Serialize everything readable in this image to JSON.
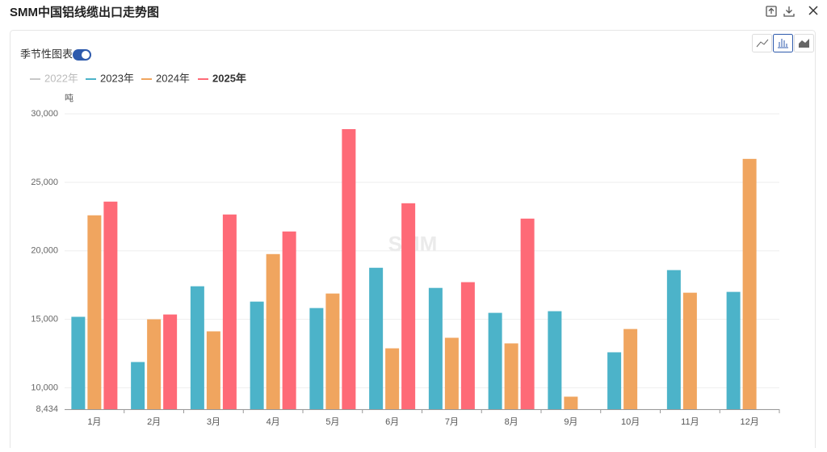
{
  "chart_data": {
    "type": "bar",
    "title": "SMM中国铝线缆出口走势图",
    "toggle_label": "季节性图表",
    "toggle_on": true,
    "unit_label": "吨",
    "watermark": "SMM",
    "categories": [
      "1月",
      "2月",
      "3月",
      "4月",
      "5月",
      "6月",
      "7月",
      "8月",
      "9月",
      "10月",
      "11月",
      "12月"
    ],
    "series": [
      {
        "name": "2022年",
        "color": "#c8c8c8",
        "visible": false,
        "values": [
          null,
          null,
          null,
          null,
          null,
          null,
          null,
          null,
          null,
          null,
          null,
          null
        ]
      },
      {
        "name": "2023年",
        "color": "#4cb3c9",
        "visible": true,
        "values": [
          15180,
          11880,
          17410,
          16290,
          15820,
          18760,
          17290,
          15470,
          15590,
          12590,
          18590,
          17000
        ]
      },
      {
        "name": "2024年",
        "color": "#f0a55f",
        "visible": true,
        "values": [
          22590,
          15000,
          14120,
          19760,
          16880,
          12880,
          13650,
          13240,
          9350,
          14290,
          16940,
          26710
        ]
      },
      {
        "name": "2025年",
        "color": "#fe6a77",
        "visible": true,
        "values": [
          23590,
          15350,
          22650,
          21410,
          28880,
          23470,
          17710,
          22350,
          null,
          null,
          null,
          null
        ]
      }
    ],
    "ylim": [
      8434,
      30000
    ],
    "yticks": [
      {
        "value": 8434,
        "label": "8,434"
      },
      {
        "value": 10000,
        "label": "10,000"
      },
      {
        "value": 15000,
        "label": "15,000"
      },
      {
        "value": 20000,
        "label": "20,000"
      },
      {
        "value": 25000,
        "label": "25,000"
      },
      {
        "value": 30000,
        "label": "30,000"
      }
    ],
    "grid": true
  }
}
